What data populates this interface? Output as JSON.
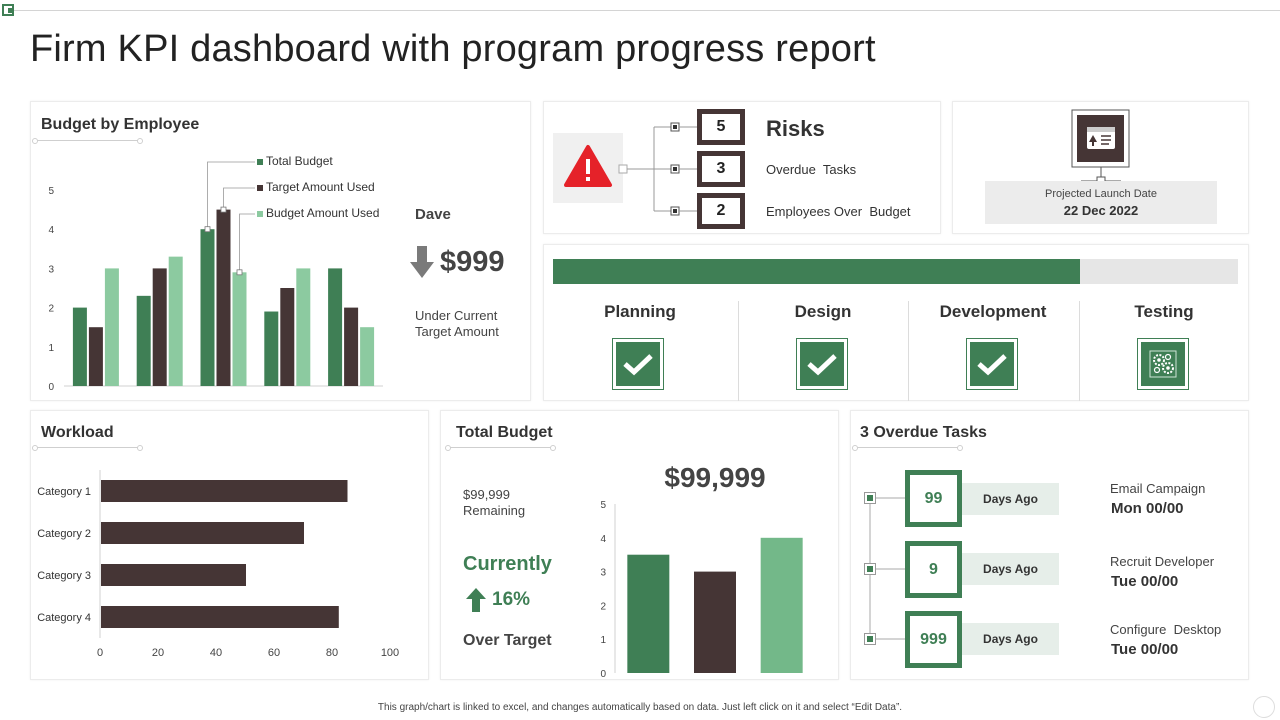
{
  "title": "Firm KPI dashboard with program progress report",
  "colors": {
    "green": "#3f7f55",
    "dark": "#453535",
    "light_green": "#8ccaa0",
    "budget_bar_light": "#73b889",
    "red": "#e52229"
  },
  "budget_panel": {
    "title": "Budget by Employee",
    "employee": "Dave",
    "value": "$999",
    "subtitle_line1": "Under Current",
    "subtitle_line2": "Target Amount",
    "icon": "arrow-down-icon"
  },
  "risks": {
    "title": "Risks",
    "icon": "warning-icon",
    "items": [
      {
        "value": "5",
        "label": ""
      },
      {
        "value": "3",
        "label": "Overdue  Tasks"
      },
      {
        "value": "2",
        "label": "Employees Over  Budget"
      }
    ]
  },
  "launch": {
    "icon": "calendar-board-icon",
    "label": "Projected Launch Date",
    "date": "22 Dec 2022"
  },
  "progress": {
    "fraction": 0.77,
    "phases": [
      {
        "label": "Planning",
        "icon": "checkmark-icon"
      },
      {
        "label": "Design",
        "icon": "checkmark-icon"
      },
      {
        "label": "Development",
        "icon": "checkmark-icon"
      },
      {
        "label": "Testing",
        "icon": "gears-icon"
      }
    ]
  },
  "workload": {
    "title": "Workload"
  },
  "total_budget": {
    "title": "Total Budget",
    "remaining_line1": "$99,999",
    "remaining_line2": "Remaining",
    "currently": "Currently",
    "percent": "16%",
    "over_target": "Over Target",
    "big_value": "$99,999",
    "icon": "arrow-up-icon"
  },
  "overdue": {
    "title": "3 Overdue Tasks",
    "items": [
      {
        "count": "99",
        "days": "Days Ago",
        "task": "Email Campaign",
        "date": "Mon 00/00"
      },
      {
        "count": "9",
        "days": "Days Ago",
        "task": "Recruit Developer",
        "date": "Tue 00/00"
      },
      {
        "count": "999",
        "days": "Days Ago",
        "task": "Configure  Desktop",
        "date": "Tue 00/00"
      }
    ]
  },
  "footnote": "This graph/chart is linked to excel, and changes automatically based on data. Just left click on it and select “Edit Data”.",
  "chart_data": [
    {
      "type": "bar",
      "title": "Budget by Employee",
      "categories": [
        "",
        "",
        "",
        "",
        ""
      ],
      "series": [
        {
          "name": "Total Budget",
          "color": "#3f7f55",
          "values": [
            2,
            2.3,
            4,
            1.9,
            3
          ]
        },
        {
          "name": "Target Amount Used",
          "color": "#453535",
          "values": [
            1.5,
            3,
            4.5,
            2.5,
            2
          ]
        },
        {
          "name": "Budget Amount Used",
          "color": "#8ccaa0",
          "values": [
            3,
            3.3,
            2.9,
            3,
            1.5
          ]
        }
      ],
      "ylim": [
        0,
        5
      ],
      "yticks": [
        "0",
        "1",
        "2",
        "3",
        "4",
        "5"
      ],
      "legend": "top-right"
    },
    {
      "type": "bar",
      "orientation": "horizontal",
      "title": "Workload",
      "categories": [
        "Category 1",
        "Category 2",
        "Category 3",
        "Category 4"
      ],
      "values": [
        85,
        70,
        50,
        82
      ],
      "color": "#453535",
      "xlim": [
        0,
        100
      ],
      "xticks": [
        "0",
        "20",
        "40",
        "60",
        "80",
        "100"
      ]
    },
    {
      "type": "bar",
      "title": "Total Budget",
      "categories": [
        "",
        "",
        ""
      ],
      "values": [
        3.5,
        3,
        4
      ],
      "colors": [
        "#3f7f55",
        "#453535",
        "#73b889"
      ],
      "ylim": [
        0,
        5
      ],
      "yticks": [
        "0",
        "1",
        "2",
        "3",
        "4",
        "5"
      ]
    }
  ]
}
